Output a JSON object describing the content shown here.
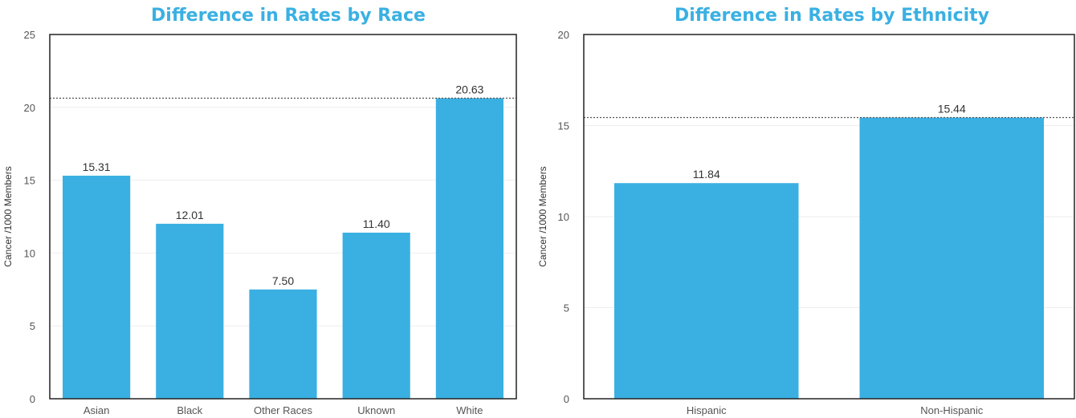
{
  "chart_data": [
    {
      "type": "bar",
      "title": "Difference in Rates by Race",
      "ylabel": "Cancer /1000 Members",
      "categories": [
        "Asian",
        "Black",
        "Other Races",
        "Uknown",
        "White"
      ],
      "values": [
        15.31,
        12.01,
        7.5,
        11.4,
        20.63
      ],
      "value_labels": [
        "15.31",
        "12.01",
        "7.50",
        "11.40",
        "20.63"
      ],
      "ylim": [
        0,
        25
      ],
      "yticks": [
        0,
        5,
        10,
        15,
        20,
        25
      ],
      "reference_line": 20.63,
      "bar_color": "#3ab0e2",
      "grid": true
    },
    {
      "type": "bar",
      "title": "Difference in Rates by Ethnicity",
      "ylabel": "Cancer /1000 Members",
      "categories": [
        "Hispanic",
        "Non-Hispanic"
      ],
      "values": [
        11.84,
        15.44
      ],
      "value_labels": [
        "11.84",
        "15.44"
      ],
      "ylim": [
        0,
        20
      ],
      "yticks": [
        0,
        5,
        10,
        15,
        20
      ],
      "reference_line": 15.44,
      "bar_color": "#3ab0e2",
      "grid": true
    }
  ]
}
